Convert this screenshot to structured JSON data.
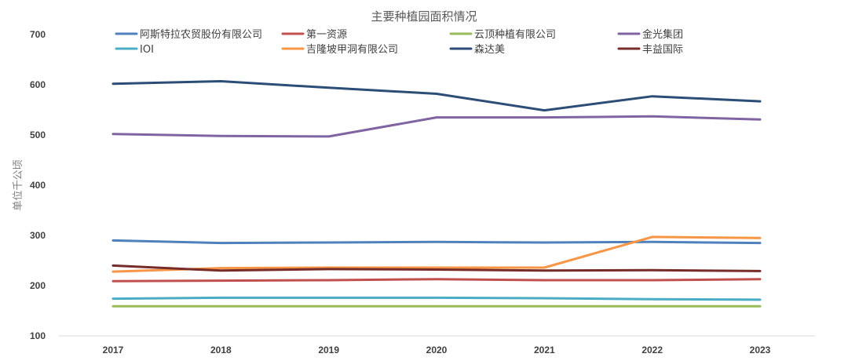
{
  "chart_data": {
    "type": "line",
    "title": "主要种植园面积情况",
    "xlabel": "",
    "ylabel": "单位千公顷",
    "x": [
      "2017",
      "2018",
      "2019",
      "2020",
      "2021",
      "2022",
      "2023"
    ],
    "ylim": [
      100,
      700
    ],
    "yticks": [
      100,
      200,
      300,
      400,
      500,
      600,
      700
    ],
    "grid": false,
    "legend_position": "top",
    "series": [
      {
        "name": "阿斯特拉农贸股份有限公司",
        "color": "#4f81bd",
        "values": [
          290,
          285,
          286,
          287,
          286,
          287,
          285
        ]
      },
      {
        "name": "第一资源",
        "color": "#c0504d",
        "values": [
          209,
          210,
          211,
          213,
          211,
          211,
          213
        ]
      },
      {
        "name": "云顶种植有限公司",
        "color": "#9bbb59",
        "values": [
          159,
          159,
          159,
          159,
          159,
          159,
          159
        ]
      },
      {
        "name": "金光集团",
        "color": "#8064a2",
        "values": [
          502,
          498,
          497,
          535,
          535,
          537,
          531
        ]
      },
      {
        "name": "IOI",
        "color": "#4bacc6",
        "values": [
          174,
          176,
          176,
          176,
          175,
          173,
          172
        ]
      },
      {
        "name": "吉隆坡甲洞有限公司",
        "color": "#f79646",
        "values": [
          228,
          235,
          236,
          236,
          236,
          297,
          295
        ]
      },
      {
        "name": "森达美",
        "color": "#2c4d75",
        "values": [
          602,
          607,
          594,
          582,
          549,
          577,
          567
        ]
      },
      {
        "name": "丰益国际",
        "color": "#772c2a",
        "values": [
          240,
          230,
          233,
          232,
          230,
          231,
          229
        ]
      }
    ]
  }
}
